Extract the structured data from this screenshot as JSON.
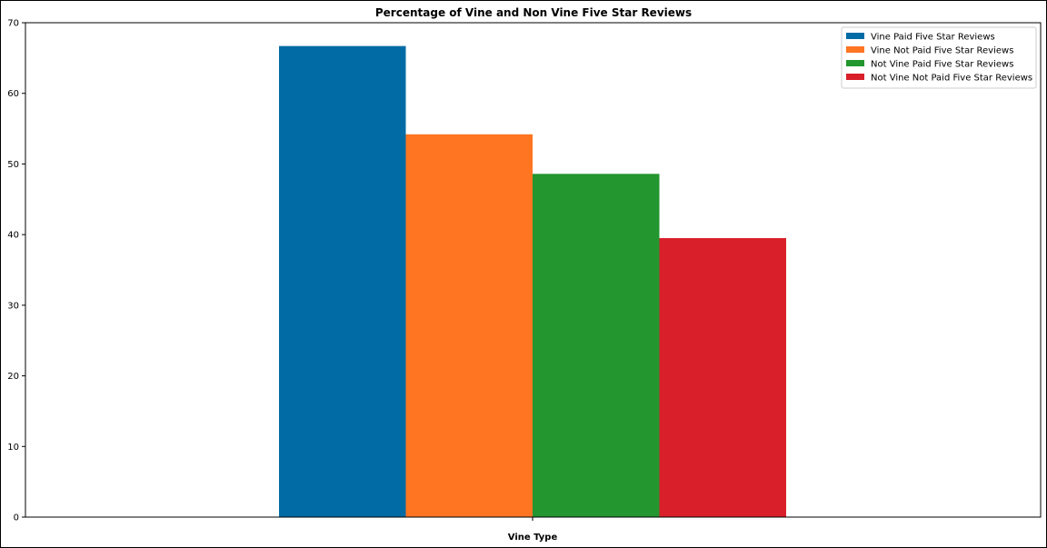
{
  "chart_data": {
    "type": "bar",
    "title": "Percentage of Vine and Non Vine Five Star Reviews",
    "xlabel": "Vine Type",
    "ylabel": "",
    "ylim": [
      0,
      70
    ],
    "yticks": [
      0,
      10,
      20,
      30,
      40,
      50,
      60,
      70
    ],
    "categories": [
      ""
    ],
    "grid": false,
    "legend_position": "top-right",
    "series": [
      {
        "name": "Vine Paid Five Star Reviews",
        "values": [
          66.7
        ],
        "color": "#006BA4"
      },
      {
        "name": "Vine Not Paid Five Star Reviews",
        "values": [
          54.2
        ],
        "color": "#FF7522"
      },
      {
        "name": "Not Vine Paid Five Star Reviews",
        "values": [
          48.6
        ],
        "color": "#23962F"
      },
      {
        "name": "Not Vine Not Paid Five Star Reviews",
        "values": [
          39.5
        ],
        "color": "#D81F2A"
      }
    ]
  }
}
